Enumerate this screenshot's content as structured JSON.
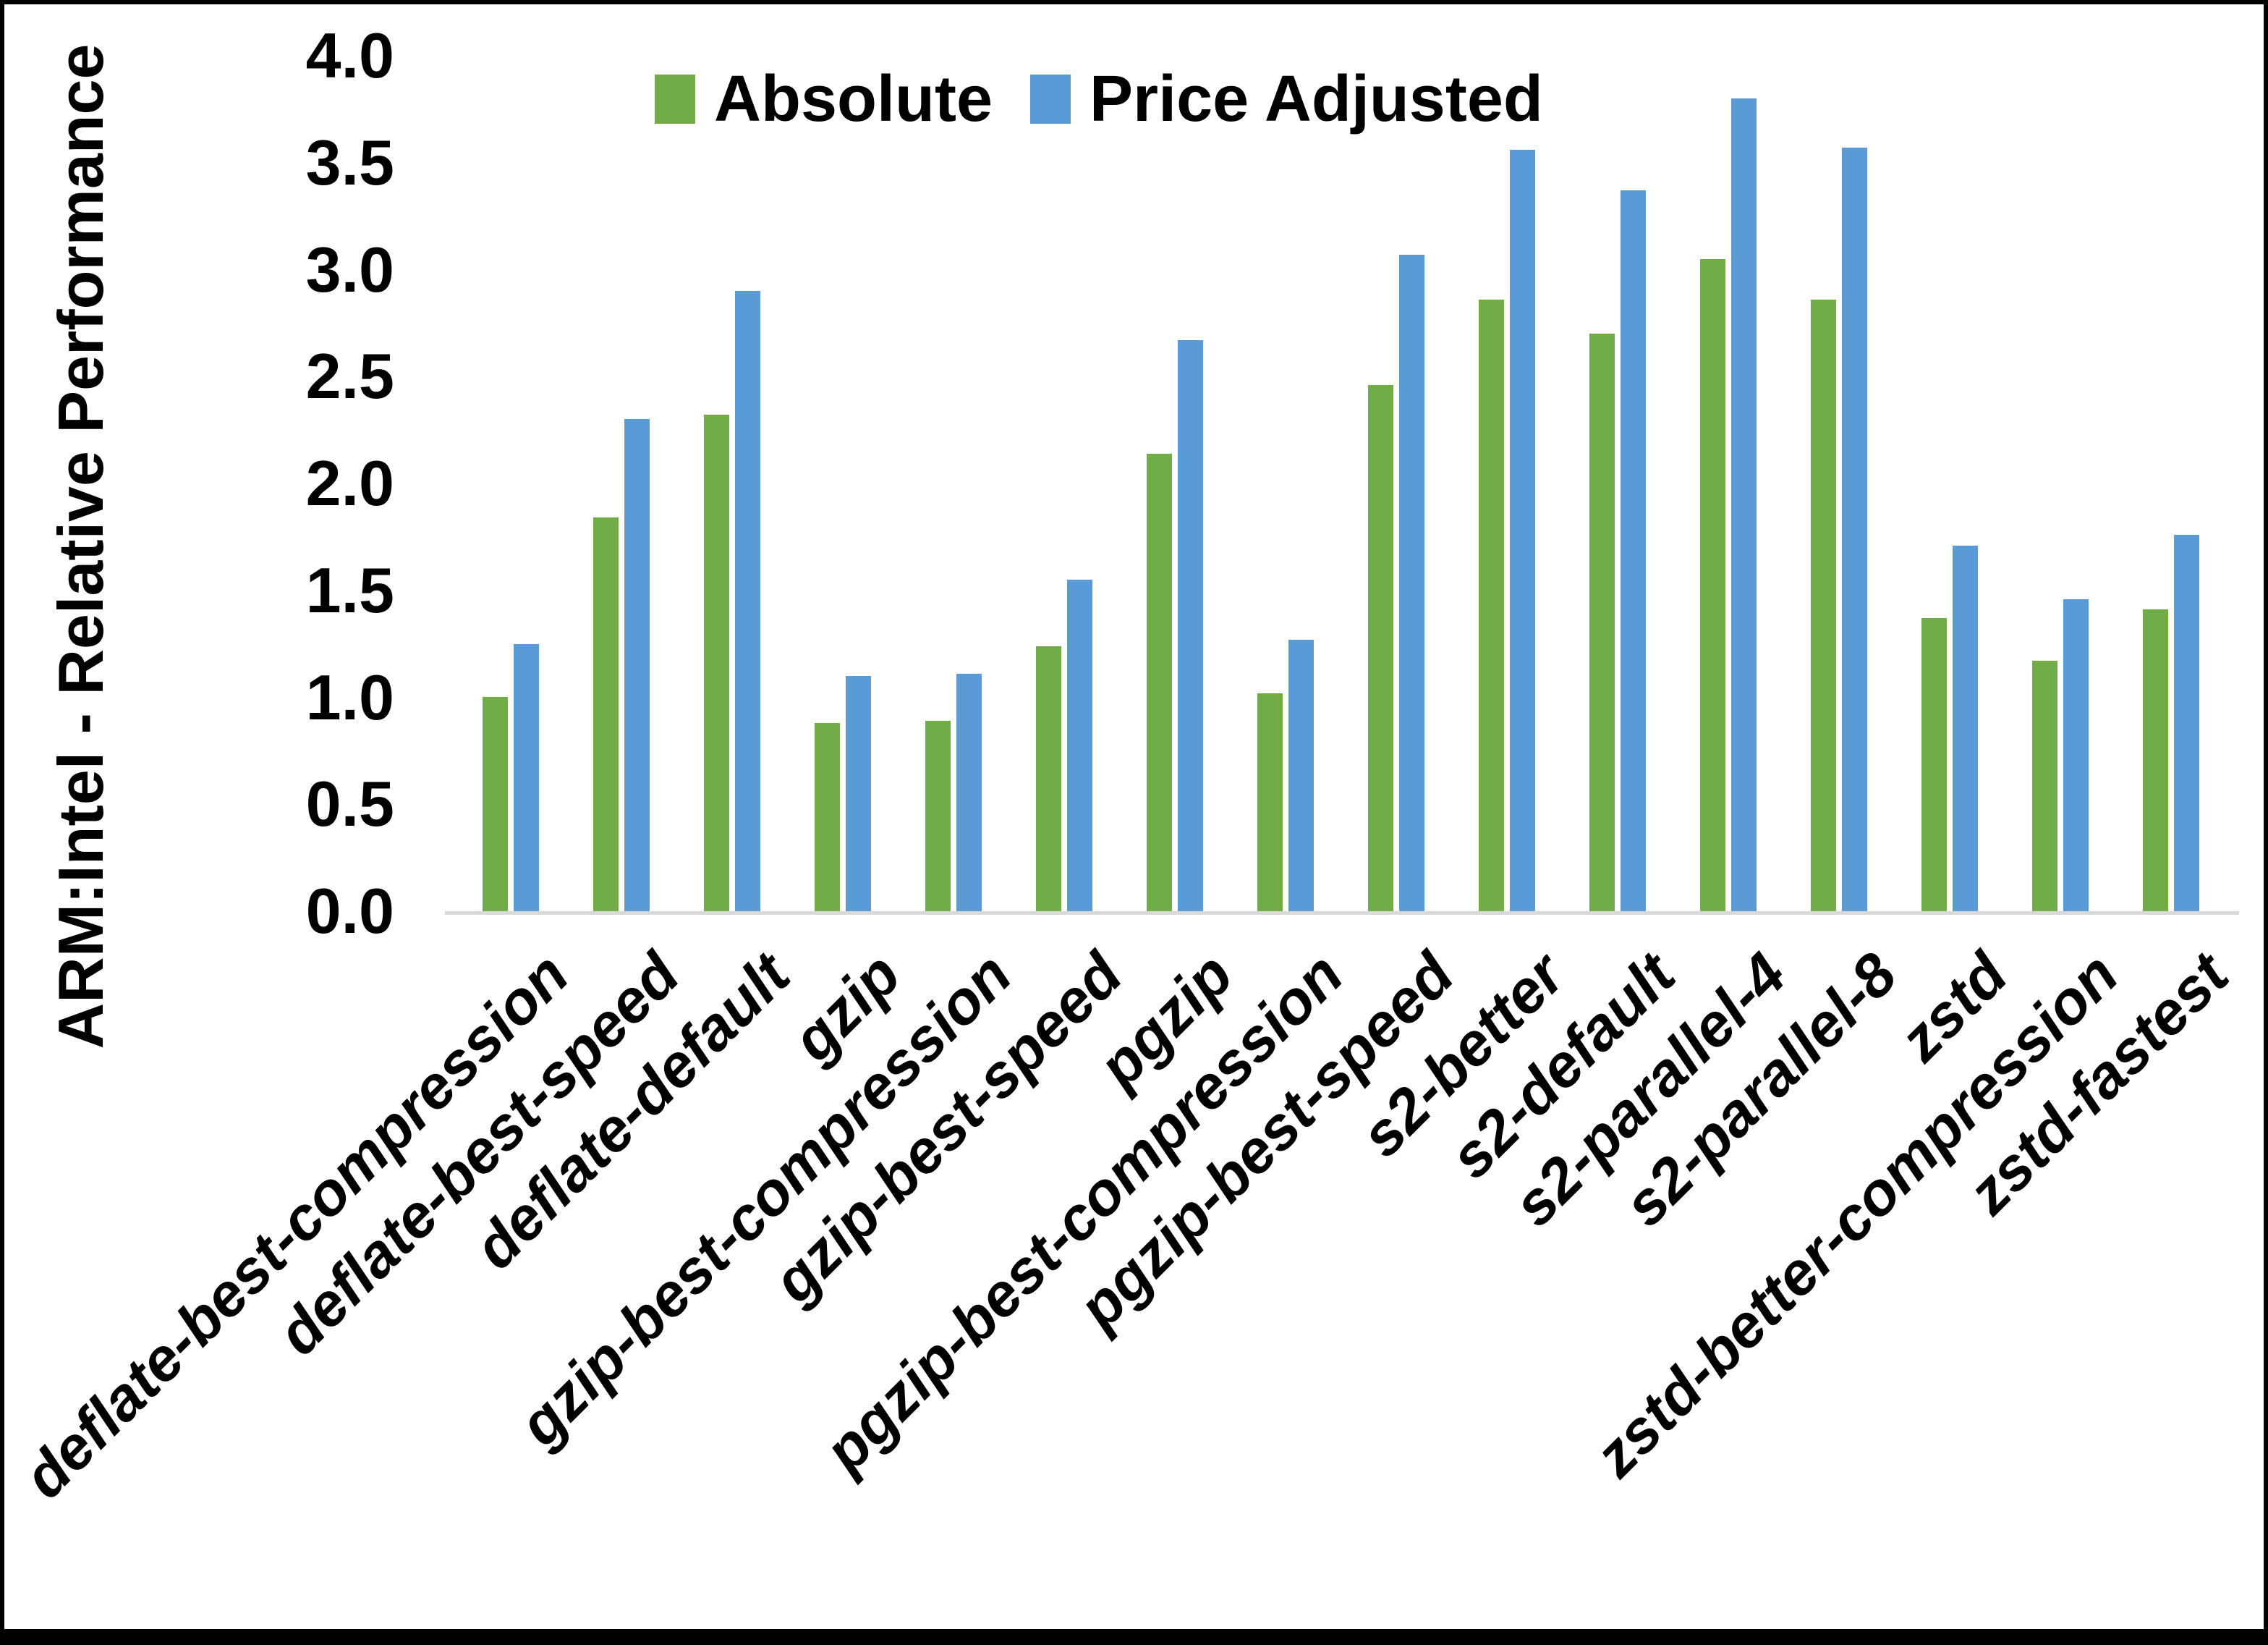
{
  "chart_data": {
    "type": "bar",
    "title": "",
    "xlabel": "",
    "ylabel": "ARM:Intel - Relative Performance",
    "ylim": [
      0.0,
      4.0
    ],
    "ytick_labels": [
      "0.0",
      "0.5",
      "1.0",
      "1.5",
      "2.0",
      "2.5",
      "3.0",
      "3.5",
      "4.0"
    ],
    "grid": false,
    "legend_position": "top-center",
    "categories": [
      "deflate-best-compression",
      "deflate-best-speed",
      "deflate-default",
      "gzip",
      "gzip-best-compression",
      "gzip-best-speed",
      "pgzip",
      "pgzip-best-compression",
      "pgzip-best-speed",
      "s2-better",
      "s2-default",
      "s2-parallel-4",
      "s2-parallel-8",
      "zstd",
      "zstd-better-compression",
      "zstd-fastest"
    ],
    "series": [
      {
        "name": "Absolute",
        "color": "#70AD47",
        "values": [
          1.0,
          1.84,
          2.32,
          0.88,
          0.89,
          1.24,
          2.14,
          1.02,
          2.46,
          2.86,
          2.7,
          3.05,
          2.86,
          1.37,
          1.17,
          1.41
        ]
      },
      {
        "name": "Price Adjusted",
        "color": "#5B9BD5",
        "values": [
          1.25,
          2.3,
          2.9,
          1.1,
          1.11,
          1.55,
          2.67,
          1.27,
          3.07,
          3.56,
          3.37,
          3.8,
          3.57,
          1.71,
          1.46,
          1.76
        ]
      }
    ],
    "axis_line_color": "#D9D9D9"
  }
}
